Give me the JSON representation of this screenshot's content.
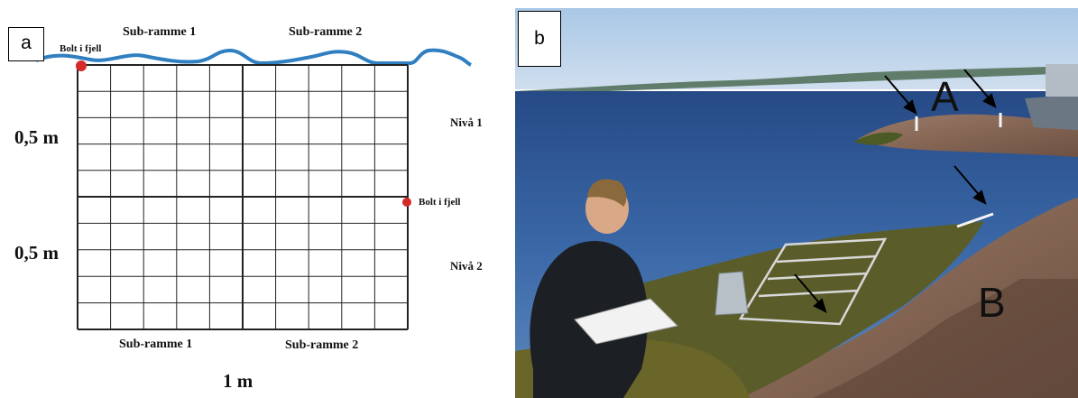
{
  "panel_a": {
    "label": "a",
    "top_labels": [
      "Sub-ramme 1",
      "Sub-ramme 2"
    ],
    "bottom_labels": [
      "Sub-ramme 1",
      "Sub-ramme 2"
    ],
    "bolt_label": "Bolt i fjell",
    "height_labels": [
      "0,5 m",
      "0,5 m"
    ],
    "level_labels": [
      "Nivå 1",
      "Nivå 2"
    ],
    "width_label": "1 m",
    "colors": {
      "water_line": "#2f7fc1",
      "bolt": "#d42a2a",
      "grid": "#222222"
    }
  },
  "panel_b": {
    "label": "b",
    "markers": [
      "A",
      "B"
    ]
  }
}
